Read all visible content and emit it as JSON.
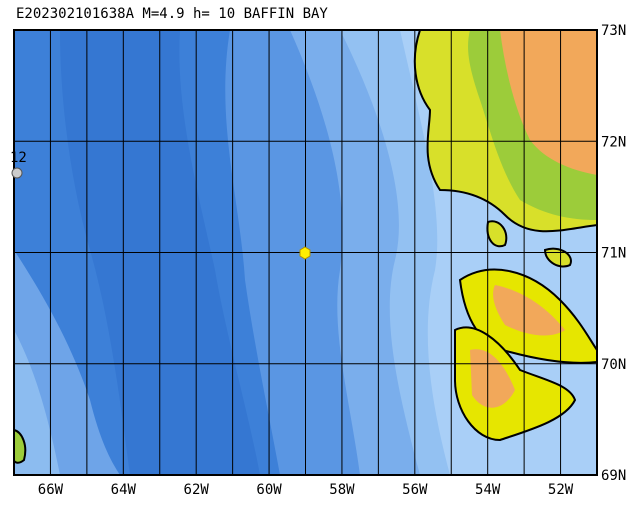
{
  "title": "E202302101638A M=4.9 h= 10 BAFFIN BAY",
  "lat_labels": [
    "73N",
    "72N",
    "71N",
    "70N",
    "69N"
  ],
  "lon_labels": [
    "66W",
    "64W",
    "62W",
    "60W",
    "58W",
    "56W",
    "54W",
    "52W"
  ],
  "marker_label": "12"
}
